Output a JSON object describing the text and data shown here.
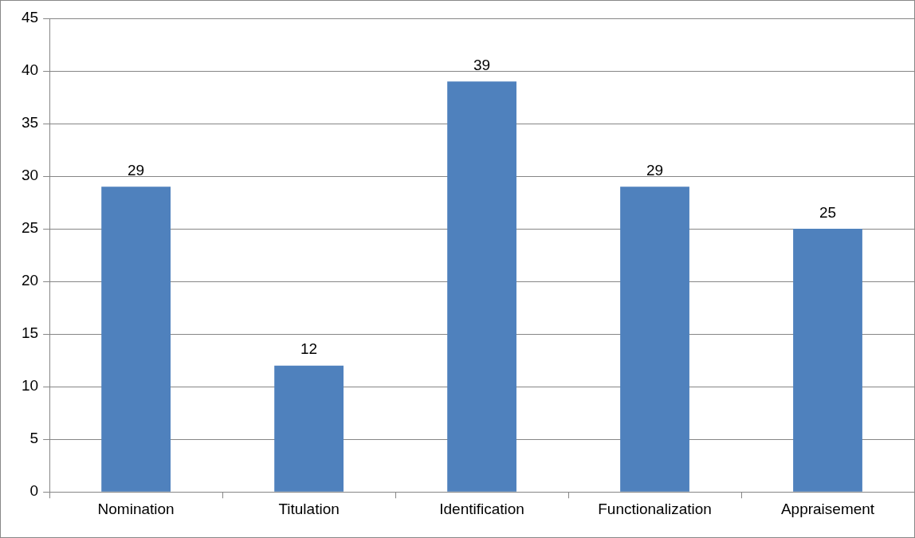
{
  "chart_data": {
    "type": "bar",
    "categories": [
      "Nomination",
      "Titulation",
      "Identification",
      "Functionalization",
      "Appraisement"
    ],
    "values": [
      29,
      12,
      39,
      29,
      25
    ],
    "color": "#4f81bd",
    "ylim": [
      0,
      45
    ],
    "yticks": [
      0,
      5,
      10,
      15,
      20,
      25,
      30,
      35,
      40,
      45
    ],
    "grid": "y",
    "data_labels": true
  }
}
